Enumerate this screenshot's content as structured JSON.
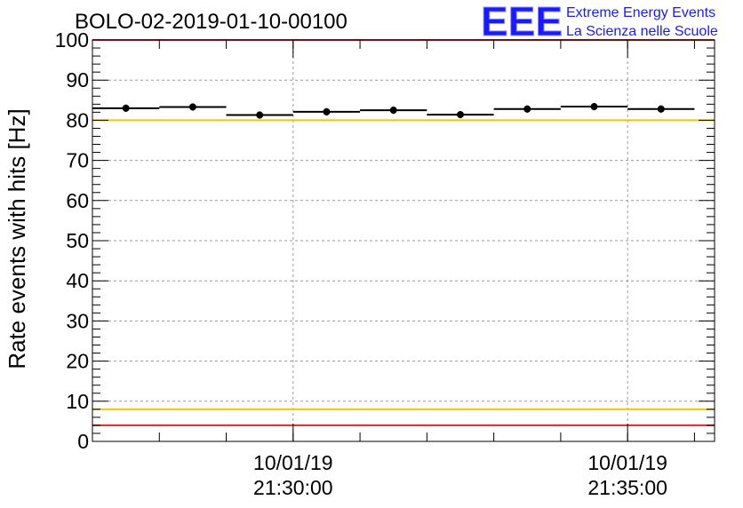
{
  "header": {
    "run_title": "BOLO-02-2019-01-10-00100",
    "logo_text": "EEE",
    "logo_line1": "Extreme Energy Events",
    "logo_line2": "La Scienza nelle Scuole"
  },
  "colors": {
    "red_threshold": "#e8222a",
    "yellow_threshold": "#f5c400",
    "logo_blue": "#1a1aff",
    "axis": "#000000",
    "grid": "#9a9a9a"
  },
  "chart_data": {
    "type": "scatter",
    "title": "BOLO-02-2019-01-10-00100",
    "xlabel": "",
    "ylabel": "Rate events with hits [Hz]",
    "ylim": [
      0,
      100
    ],
    "x_unit": "minutes since 21:27:00 (10/01/19)",
    "xlim": [
      0,
      9.3
    ],
    "yticks": [
      0,
      10,
      20,
      30,
      40,
      50,
      60,
      70,
      80,
      90,
      100
    ],
    "xticks": [
      {
        "x": 3,
        "line1": "10/01/19",
        "line2": "21:30:00"
      },
      {
        "x": 8,
        "line1": "10/01/19",
        "line2": "21:35:00"
      }
    ],
    "grid": true,
    "series": [
      {
        "points": [
          {
            "x0": 0.0,
            "x1": 1.0,
            "y": 83.0,
            "err": 0.9
          },
          {
            "x0": 1.0,
            "x1": 2.0,
            "y": 83.3,
            "err": 0.9
          },
          {
            "x0": 2.0,
            "x1": 3.0,
            "y": 81.3,
            "err": 0.9
          },
          {
            "x0": 3.0,
            "x1": 4.0,
            "y": 82.1,
            "err": 0.9
          },
          {
            "x0": 4.0,
            "x1": 5.0,
            "y": 82.5,
            "err": 0.9
          },
          {
            "x0": 5.0,
            "x1": 6.0,
            "y": 81.4,
            "err": 0.9
          },
          {
            "x0": 6.0,
            "x1": 7.0,
            "y": 82.8,
            "err": 0.9
          },
          {
            "x0": 7.0,
            "x1": 8.0,
            "y": 83.4,
            "err": 0.9
          },
          {
            "x0": 8.0,
            "x1": 9.0,
            "y": 82.8,
            "err": 0.9
          }
        ]
      }
    ],
    "threshold_lines": [
      {
        "y": 100,
        "color": "red"
      },
      {
        "y": 80,
        "color": "yellow"
      },
      {
        "y": 8,
        "color": "yellow"
      },
      {
        "y": 4,
        "color": "red"
      }
    ]
  }
}
